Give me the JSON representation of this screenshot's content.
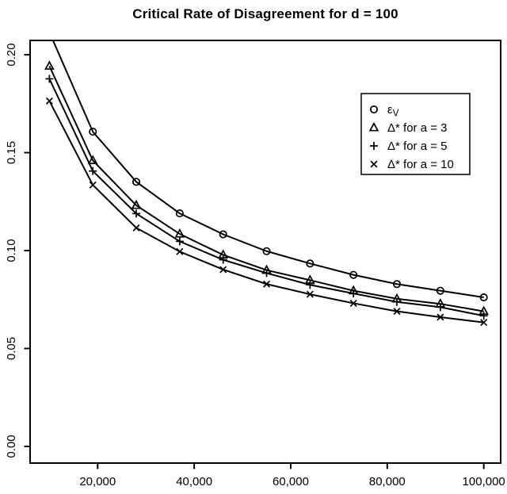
{
  "chart_data": {
    "type": "line",
    "title": "Critical Rate of Disagreement for d = 100",
    "xlabel": "",
    "ylabel": "",
    "grid": false,
    "xlim": [
      6000,
      103500
    ],
    "ylim": [
      -0.0085,
      0.2073
    ],
    "x": [
      10000,
      19000,
      28000,
      37000,
      46000,
      55000,
      64000,
      73000,
      82000,
      91000,
      100000
    ],
    "series": [
      {
        "name": "εV",
        "marker": "circle",
        "values": [
          0.2115,
          0.1607,
          0.1351,
          0.119,
          0.1083,
          0.0997,
          0.0934,
          0.0876,
          0.0829,
          0.0795,
          0.0761
        ]
      },
      {
        "name": "Δ* for a = 3",
        "marker": "triangle",
        "values": [
          0.1942,
          0.146,
          0.1231,
          0.1085,
          0.0978,
          0.09,
          0.0849,
          0.0795,
          0.0754,
          0.0728,
          0.069
        ]
      },
      {
        "name": "Δ* for a = 5",
        "marker": "plus",
        "values": [
          0.1877,
          0.1406,
          0.1189,
          0.1047,
          0.0953,
          0.0885,
          0.0825,
          0.0781,
          0.0738,
          0.0711,
          0.0667
        ]
      },
      {
        "name": "Δ* for a = 10",
        "marker": "x",
        "values": [
          0.1764,
          0.1335,
          0.1116,
          0.0995,
          0.0903,
          0.0829,
          0.0777,
          0.0731,
          0.069,
          0.066,
          0.0633
        ]
      }
    ],
    "x_ticks": [
      {
        "value": 20000,
        "label": "20,000"
      },
      {
        "value": 40000,
        "label": "40,000"
      },
      {
        "value": 60000,
        "label": "60,000"
      },
      {
        "value": 80000,
        "label": "80,000"
      },
      {
        "value": 100000,
        "label": "100,000"
      }
    ],
    "y_ticks": [
      {
        "value": 0.0,
        "label": "0.00"
      },
      {
        "value": 0.05,
        "label": "0.05"
      },
      {
        "value": 0.1,
        "label": "0.10"
      },
      {
        "value": 0.15,
        "label": "0.15"
      },
      {
        "value": 0.2,
        "label": "0.20"
      }
    ],
    "legend": {
      "position": "top-right",
      "entries": [
        {
          "marker": "circle",
          "label": "ε",
          "label_sub": "V"
        },
        {
          "marker": "triangle",
          "label": "Δ* for a = 3",
          "label_sub": ""
        },
        {
          "marker": "plus",
          "label": "Δ* for a = 5",
          "label_sub": ""
        },
        {
          "marker": "x",
          "label": "Δ* for a = 10",
          "label_sub": ""
        }
      ]
    },
    "colors": {
      "foreground": "#000000",
      "background": "#ffffff"
    }
  }
}
